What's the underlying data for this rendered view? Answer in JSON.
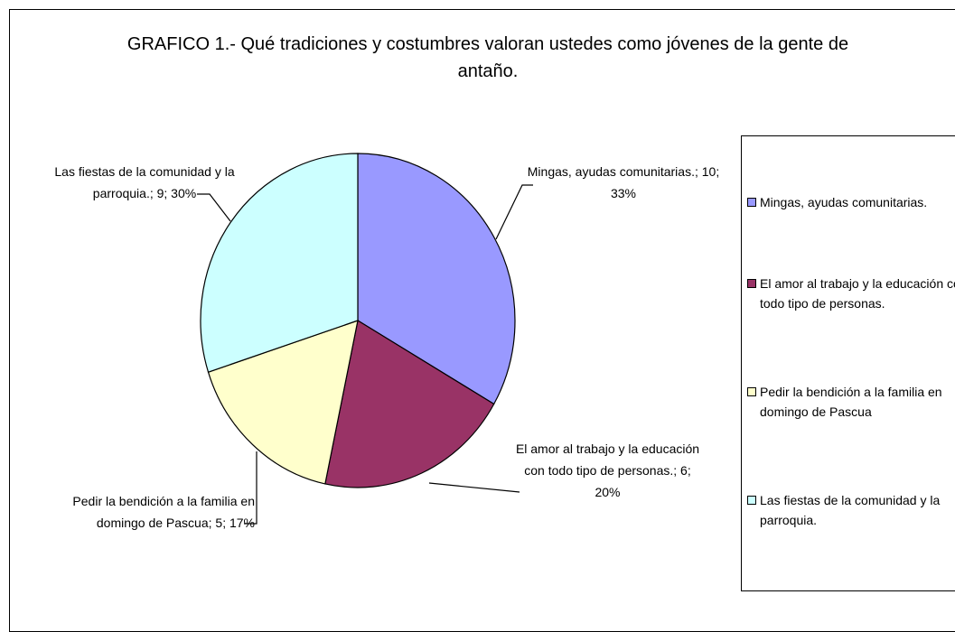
{
  "chart_data": {
    "type": "pie",
    "title": "GRAFICO 1.- Qué tradiciones y costumbres valoran ustedes como jóvenes de la gente de antaño.",
    "categories": [
      "Mingas, ayudas comunitarias.",
      "El amor al trabajo y la educación con todo tipo de personas.",
      "Pedir la bendición a la familia en domingo de Pascua",
      "Las fiestas de la comunidad y la parroquia."
    ],
    "values": [
      10,
      6,
      5,
      9
    ],
    "value_labels": [
      "Mingas, ayudas comunitarias.; 10; 33%",
      "El amor al trabajo y la educación con todo tipo de personas.; 6; 20%",
      "Pedir la bendición a la familia en domingo de Pascua; 5; 17%",
      "Las fiestas de la comunidad y la parroquia.; 9; 30%"
    ],
    "colors": [
      "#9999ff",
      "#993366",
      "#ffffcc",
      "#ccffff"
    ],
    "legend": "right"
  }
}
